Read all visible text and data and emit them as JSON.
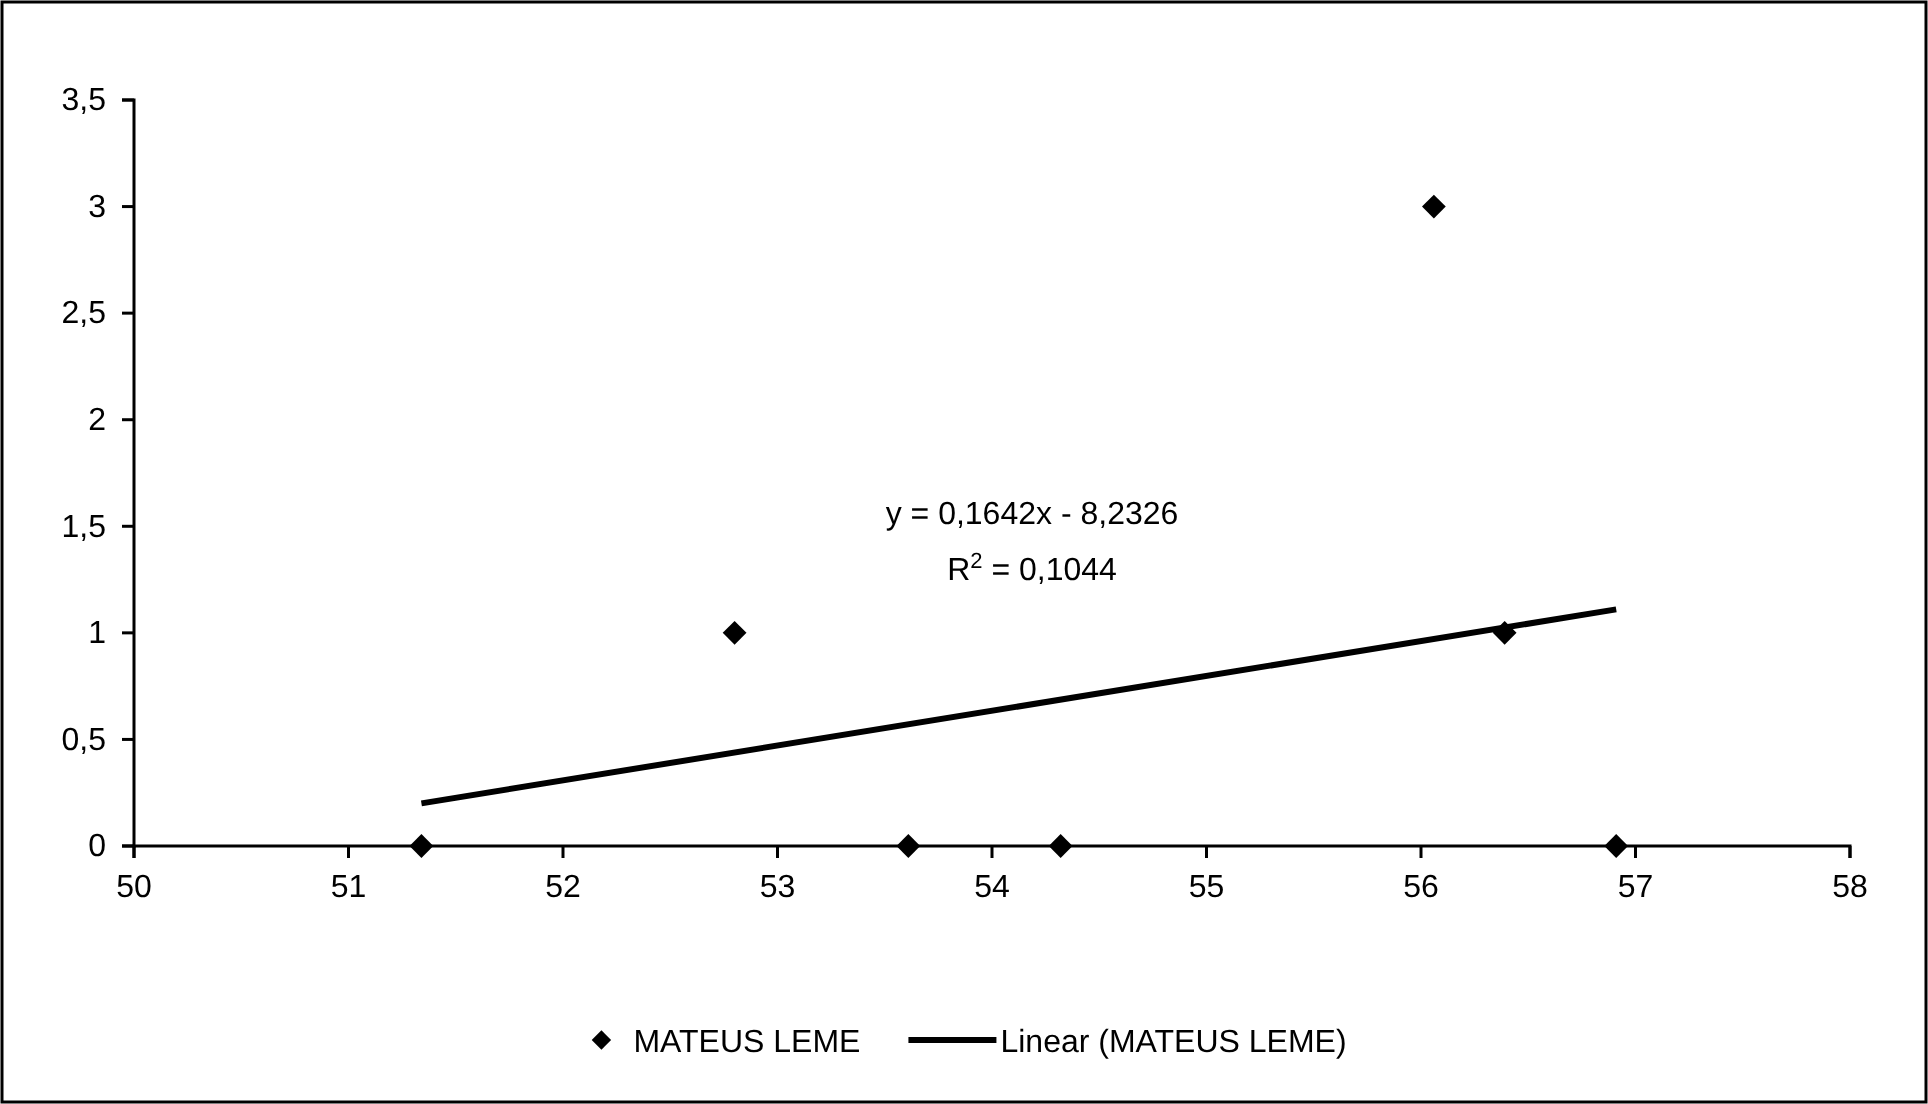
{
  "chart_data": {
    "type": "scatter",
    "legend": "bottom",
    "xlim": [
      50,
      58
    ],
    "xticks": [
      50,
      51,
      52,
      53,
      54,
      55,
      56,
      57,
      58
    ],
    "ylim": [
      0,
      3.5
    ],
    "yticks": [
      0,
      {
        "value": 0.5,
        "label": "0,5"
      },
      1,
      {
        "value": 1.5,
        "label": "1,5"
      },
      2,
      {
        "value": 2.5,
        "label": "2,5"
      },
      3,
      {
        "value": 3.5,
        "label": "3,5"
      }
    ],
    "series": [
      {
        "name": "MATEUS LEME",
        "color": "#000000",
        "marker": "diamond",
        "x": [
          51.34,
          52.8,
          53.61,
          54.32,
          56.06,
          56.39,
          56.91
        ],
        "values": [
          0,
          1,
          0,
          0,
          3,
          1,
          0
        ]
      },
      {
        "type": "line",
        "name": "Linear (MATEUS LEME)",
        "color": "#000000",
        "marker": "none",
        "line_style": "solid",
        "x": [
          51.34,
          56.91
        ],
        "values": [
          0.2,
          1.11
        ]
      }
    ],
    "annotations": [
      "y = 0,1642x - 8,2326",
      "R$^{2}$ = 0,1044"
    ]
  }
}
